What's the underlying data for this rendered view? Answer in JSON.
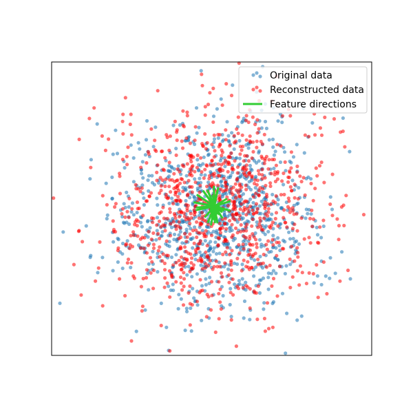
{
  "chart_data": {
    "type": "scatter",
    "title": "",
    "xlabel": "",
    "ylabel": "",
    "ticks_visible": false,
    "grid": false,
    "legend_position": "top-right",
    "xlim": [
      -3.0,
      3.0
    ],
    "ylim": [
      -3.0,
      3.0
    ],
    "colors": {
      "original": "#1f77b4",
      "reconstructed": "#ff0000",
      "features": "#33cc33"
    },
    "series": [
      {
        "name": "Original data",
        "kind": "points",
        "n": 950,
        "sigma_x": 0.95,
        "sigma_y": 0.95,
        "center": [
          0.05,
          -0.15
        ],
        "seed": 17
      },
      {
        "name": "Reconstructed data",
        "kind": "points",
        "n": 950,
        "sigma_x": 1.0,
        "sigma_y": 1.0,
        "center": [
          0.1,
          -0.05
        ],
        "seed": 73
      },
      {
        "name": "Feature directions",
        "kind": "vectors",
        "origin": [
          0.05,
          0.05
        ],
        "n": 40,
        "length_min": 0.1,
        "length_max": 0.4,
        "seed": 5
      }
    ]
  }
}
